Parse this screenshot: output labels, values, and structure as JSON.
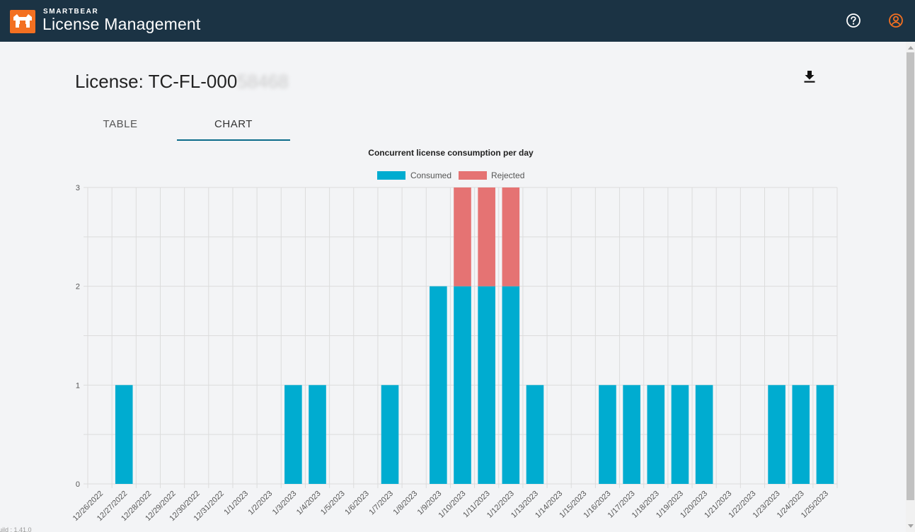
{
  "header": {
    "brand": "SMARTBEAR",
    "app_title": "License Management",
    "icons": [
      "help-circle-icon",
      "user-account-icon"
    ],
    "colors": {
      "bar": "#1b3344",
      "accent": "#f37021"
    }
  },
  "page": {
    "title_prefix": "License: TC-FL-000",
    "title_redacted": "58468",
    "download_icon": "download-icon",
    "tabs": [
      {
        "label": "TABLE",
        "active": false
      },
      {
        "label": "CHART",
        "active": true
      }
    ],
    "build_info": "uild : 1.41.0"
  },
  "chart_data": {
    "type": "bar",
    "stacked": true,
    "title": "Concurrent license consumption per day",
    "categories": [
      "12/26/2022",
      "12/27/2022",
      "12/28/2022",
      "12/29/2022",
      "12/30/2022",
      "12/31/2022",
      "1/1/2023",
      "1/2/2023",
      "1/3/2023",
      "1/4/2023",
      "1/5/2023",
      "1/6/2023",
      "1/7/2023",
      "1/8/2023",
      "1/9/2023",
      "1/10/2023",
      "1/11/2023",
      "1/12/2023",
      "1/13/2023",
      "1/14/2023",
      "1/15/2023",
      "1/16/2023",
      "1/17/2023",
      "1/18/2023",
      "1/19/2023",
      "1/20/2023",
      "1/21/2023",
      "1/22/2023",
      "1/23/2023",
      "1/24/2023",
      "1/25/2023"
    ],
    "series": [
      {
        "name": "Consumed",
        "color": "#00acd0",
        "values": [
          0,
          1,
          0,
          0,
          0,
          0,
          0,
          0,
          1,
          1,
          0,
          0,
          1,
          0,
          2,
          2,
          2,
          2,
          1,
          0,
          0,
          1,
          1,
          1,
          1,
          1,
          0,
          0,
          1,
          1,
          1
        ]
      },
      {
        "name": "Rejected",
        "color": "#e57373",
        "values": [
          0,
          0,
          0,
          0,
          0,
          0,
          0,
          0,
          0,
          0,
          0,
          0,
          0,
          0,
          0,
          1,
          1,
          1,
          0,
          0,
          0,
          0,
          0,
          0,
          0,
          0,
          0,
          0,
          0,
          0,
          0
        ]
      }
    ],
    "yticks": [
      "0",
      "1",
      "2",
      "3"
    ],
    "ylim": [
      0,
      3
    ],
    "legend": "top-center",
    "grid": true
  }
}
